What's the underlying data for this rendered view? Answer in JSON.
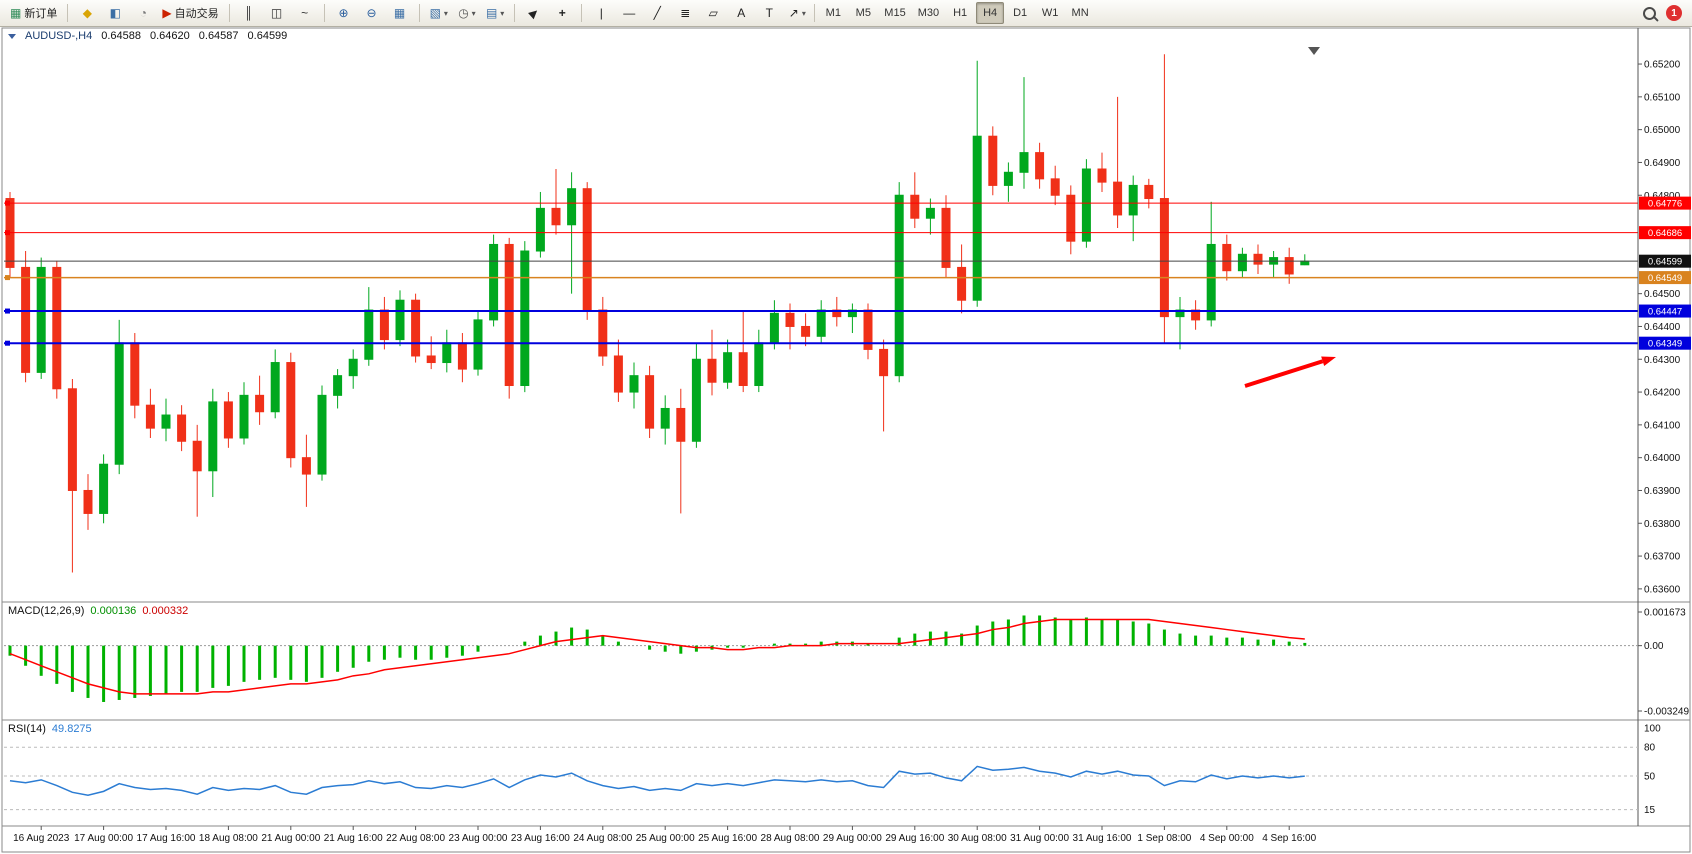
{
  "toolbar": {
    "groups": [
      {
        "items": [
          {
            "name": "new-order-button",
            "glyph": "▦",
            "glyph_color": "#2e8b57",
            "label": "新订单"
          }
        ]
      },
      {
        "items": [
          {
            "name": "market-watch-icon",
            "glyph": "◆",
            "glyph_color": "#d9a404"
          },
          {
            "name": "data-window-icon",
            "glyph": "◧",
            "glyph_color": "#3a6ea5"
          },
          {
            "name": "history-center-icon",
            "glyph": "◔",
            "glyph_color": "#777777"
          },
          {
            "name": "autotrading-button",
            "glyph": "▶",
            "glyph_color": "#cc2200",
            "label": "自动交易"
          }
        ]
      },
      {
        "items": [
          {
            "name": "ohlc-bars-button",
            "glyph": "║",
            "glyph_color": "#333333"
          },
          {
            "name": "candlestick-chart-button",
            "glyph": "◫",
            "glyph_color": "#333333"
          },
          {
            "name": "line-chart-button",
            "glyph": "~",
            "glyph_color": "#333333"
          }
        ]
      },
      {
        "items": [
          {
            "name": "zoom-in-button",
            "glyph": "⊕",
            "glyph_color": "#2b5f9e"
          },
          {
            "name": "zoom-out-button",
            "glyph": "⊖",
            "glyph_color": "#2b5f9e"
          },
          {
            "name": "tile-windows-button",
            "glyph": "▦",
            "glyph_color": "#3a6ea5"
          }
        ]
      },
      {
        "items": [
          {
            "name": "new-chart-button",
            "glyph": "▧",
            "glyph_color": "#3a6ea5",
            "caret": true
          },
          {
            "name": "templates-button",
            "glyph": "◷",
            "glyph_color": "#555555",
            "caret": true
          },
          {
            "name": "indicators-button",
            "glyph": "▤",
            "glyph_color": "#3a6ea5",
            "caret": true
          }
        ]
      },
      {
        "items": [
          {
            "name": "cursor-button",
            "glyph": "▶",
            "glyph_color": "#222222"
          },
          {
            "name": "crosshair-button",
            "glyph": "+",
            "glyph_color": "#222222"
          }
        ]
      },
      {
        "items": [
          {
            "name": "vertical-line-button",
            "glyph": "|",
            "glyph_color": "#222222"
          },
          {
            "name": "horizontal-line-button",
            "glyph": "—",
            "glyph_color": "#222222"
          },
          {
            "name": "trendline-button",
            "glyph": "╱",
            "glyph_color": "#222222"
          },
          {
            "name": "fibonacci-button",
            "glyph": "≣",
            "glyph_color": "#222222"
          },
          {
            "name": "shapes-button",
            "glyph": "▱",
            "glyph_color": "#222222"
          },
          {
            "name": "text-button",
            "glyph": "A",
            "glyph_color": "#222222"
          },
          {
            "name": "label-button",
            "glyph": "T",
            "glyph_color": "#222222"
          },
          {
            "name": "arrows-button",
            "glyph": "↗",
            "glyph_color": "#222222",
            "caret": true
          }
        ]
      }
    ],
    "timeframes": {
      "options": [
        "M1",
        "M5",
        "M15",
        "M30",
        "H1",
        "H4",
        "D1",
        "W1",
        "MN"
      ],
      "active": "H4"
    },
    "notifications": {
      "count": "1"
    }
  },
  "chart_header": {
    "symbol": "AUDUSD-,H4",
    "open": "0.64588",
    "high": "0.64620",
    "low": "0.64587",
    "close": "0.64599"
  },
  "chart_data": [
    {
      "type": "candlestick",
      "title": "AUDUSD- H4 candlestick chart",
      "ylim": [
        0.6356,
        0.65255
      ],
      "colors": {
        "up": "#00a81e",
        "down": "#f03018",
        "current_price_line": "#444444"
      },
      "y_ticks": [
        "0.65200",
        "0.65100",
        "0.65000",
        "0.64900",
        "0.64800",
        "0.64500",
        "0.64400",
        "0.64300",
        "0.64200",
        "0.64100",
        "0.64000",
        "0.63900",
        "0.63800",
        "0.63700",
        "0.63600"
      ],
      "x_labels": [
        "16 Aug 2023",
        "17 Aug 00:00",
        "17 Aug 16:00",
        "18 Aug 08:00",
        "21 Aug 00:00",
        "21 Aug 16:00",
        "22 Aug 08:00",
        "23 Aug 00:00",
        "23 Aug 16:00",
        "24 Aug 08:00",
        "25 Aug 00:00",
        "25 Aug 16:00",
        "28 Aug 08:00",
        "29 Aug 00:00",
        "29 Aug 16:00",
        "30 Aug 08:00",
        "31 Aug 00:00",
        "31 Aug 16:00",
        "1 Sep 08:00",
        "4 Sep 00:00",
        "4 Sep 16:00"
      ],
      "x_label_bar_indices": [
        2,
        6,
        10,
        14,
        18,
        22,
        26,
        30,
        34,
        38,
        42,
        46,
        50,
        54,
        58,
        62,
        66,
        70,
        74,
        78,
        82
      ],
      "hlines": [
        {
          "price": 0.64776,
          "label": "0.64776",
          "color": "#ff0000",
          "width": 1,
          "handle": true
        },
        {
          "price": 0.64686,
          "label": "0.64686",
          "color": "#ff0000",
          "width": 1,
          "handle": true
        },
        {
          "price": 0.64599,
          "label": "0.64599",
          "color": "#111111",
          "width": 1,
          "handle": false,
          "current": true
        },
        {
          "price": 0.64549,
          "label": "0.64549",
          "color": "#d9831f",
          "width": 1.5,
          "handle": true
        },
        {
          "price": 0.64447,
          "label": "0.64447",
          "color": "#0000dd",
          "width": 2,
          "handle": true
        },
        {
          "price": 0.64349,
          "label": "0.64349",
          "color": "#0000dd",
          "width": 2,
          "handle": true
        }
      ],
      "annotations": [
        {
          "type": "arrow",
          "color": "#ff0000",
          "from": [
            1245,
            386
          ],
          "to": [
            1336,
            357
          ]
        }
      ],
      "ohlc": [
        [
          0.6479,
          0.6481,
          0.6455,
          0.6458
        ],
        [
          0.6458,
          0.6463,
          0.6423,
          0.6426
        ],
        [
          0.6426,
          0.6461,
          0.6424,
          0.6458
        ],
        [
          0.6458,
          0.646,
          0.6418,
          0.6421
        ],
        [
          0.6421,
          0.6424,
          0.6365,
          0.639
        ],
        [
          0.639,
          0.6395,
          0.6378,
          0.6383
        ],
        [
          0.6383,
          0.6401,
          0.638,
          0.6398
        ],
        [
          0.6398,
          0.6442,
          0.6395,
          0.6435
        ],
        [
          0.6435,
          0.6438,
          0.6412,
          0.6416
        ],
        [
          0.6416,
          0.6421,
          0.6406,
          0.6409
        ],
        [
          0.6409,
          0.6418,
          0.6405,
          0.6413
        ],
        [
          0.6413,
          0.6416,
          0.6402,
          0.6405
        ],
        [
          0.6405,
          0.641,
          0.6382,
          0.6396
        ],
        [
          0.6396,
          0.6421,
          0.6388,
          0.6417
        ],
        [
          0.6417,
          0.642,
          0.6403,
          0.6406
        ],
        [
          0.6406,
          0.6423,
          0.6404,
          0.6419
        ],
        [
          0.6419,
          0.6425,
          0.641,
          0.6414
        ],
        [
          0.6414,
          0.6433,
          0.6412,
          0.6429
        ],
        [
          0.6429,
          0.6432,
          0.6397,
          0.64
        ],
        [
          0.64,
          0.6407,
          0.6385,
          0.6395
        ],
        [
          0.6395,
          0.6422,
          0.6393,
          0.6419
        ],
        [
          0.6419,
          0.6427,
          0.6415,
          0.6425
        ],
        [
          0.6425,
          0.6433,
          0.6421,
          0.643
        ],
        [
          0.643,
          0.6452,
          0.6428,
          0.6445
        ],
        [
          0.6445,
          0.6449,
          0.6433,
          0.6436
        ],
        [
          0.6436,
          0.6451,
          0.6434,
          0.6448
        ],
        [
          0.6448,
          0.645,
          0.6429,
          0.6431
        ],
        [
          0.6431,
          0.6437,
          0.6427,
          0.6429
        ],
        [
          0.6429,
          0.6439,
          0.6426,
          0.6435
        ],
        [
          0.6435,
          0.6438,
          0.6423,
          0.6427
        ],
        [
          0.6427,
          0.6445,
          0.6425,
          0.6442
        ],
        [
          0.6442,
          0.6468,
          0.644,
          0.6465
        ],
        [
          0.6465,
          0.6467,
          0.6418,
          0.6422
        ],
        [
          0.6422,
          0.6466,
          0.642,
          0.6463
        ],
        [
          0.6463,
          0.6481,
          0.6461,
          0.6476
        ],
        [
          0.6476,
          0.6488,
          0.6468,
          0.6471
        ],
        [
          0.6471,
          0.6487,
          0.645,
          0.6482
        ],
        [
          0.6482,
          0.6484,
          0.6442,
          0.6445
        ],
        [
          0.6445,
          0.6449,
          0.6428,
          0.6431
        ],
        [
          0.6431,
          0.6436,
          0.6417,
          0.642
        ],
        [
          0.642,
          0.6429,
          0.6415,
          0.6425
        ],
        [
          0.6425,
          0.6428,
          0.6406,
          0.6409
        ],
        [
          0.6409,
          0.6419,
          0.6404,
          0.6415
        ],
        [
          0.6415,
          0.6421,
          0.6383,
          0.6405
        ],
        [
          0.6405,
          0.6435,
          0.6403,
          0.643
        ],
        [
          0.643,
          0.6439,
          0.6419,
          0.6423
        ],
        [
          0.6423,
          0.6436,
          0.6421,
          0.6432
        ],
        [
          0.6432,
          0.6445,
          0.642,
          0.6422
        ],
        [
          0.6422,
          0.6439,
          0.642,
          0.6435
        ],
        [
          0.6435,
          0.6448,
          0.6433,
          0.6444
        ],
        [
          0.6444,
          0.6447,
          0.6433,
          0.644
        ],
        [
          0.644,
          0.6444,
          0.6434,
          0.6437
        ],
        [
          0.6437,
          0.6448,
          0.6435,
          0.6445
        ],
        [
          0.6445,
          0.6449,
          0.644,
          0.6443
        ],
        [
          0.6443,
          0.6447,
          0.6438,
          0.6445
        ],
        [
          0.6445,
          0.6447,
          0.643,
          0.6433
        ],
        [
          0.6433,
          0.6436,
          0.6408,
          0.6425
        ],
        [
          0.6425,
          0.6484,
          0.6423,
          0.648
        ],
        [
          0.648,
          0.6487,
          0.647,
          0.6473
        ],
        [
          0.6473,
          0.6479,
          0.6468,
          0.6476
        ],
        [
          0.6476,
          0.648,
          0.6455,
          0.6458
        ],
        [
          0.6458,
          0.6465,
          0.6444,
          0.6448
        ],
        [
          0.6448,
          0.6521,
          0.6446,
          0.6498
        ],
        [
          0.6498,
          0.6501,
          0.648,
          0.6483
        ],
        [
          0.6483,
          0.649,
          0.6478,
          0.6487
        ],
        [
          0.6487,
          0.6516,
          0.6482,
          0.6493
        ],
        [
          0.6493,
          0.6496,
          0.6482,
          0.6485
        ],
        [
          0.6485,
          0.6489,
          0.6477,
          0.648
        ],
        [
          0.648,
          0.6483,
          0.6462,
          0.6466
        ],
        [
          0.6466,
          0.6491,
          0.6464,
          0.6488
        ],
        [
          0.6488,
          0.6493,
          0.6481,
          0.6484
        ],
        [
          0.6484,
          0.651,
          0.647,
          0.6474
        ],
        [
          0.6474,
          0.6486,
          0.6466,
          0.6483
        ],
        [
          0.6483,
          0.6485,
          0.6476,
          0.6479
        ],
        [
          0.6479,
          0.6523,
          0.6435,
          0.6443
        ],
        [
          0.6443,
          0.6449,
          0.6433,
          0.6445
        ],
        [
          0.6445,
          0.6448,
          0.6439,
          0.6442
        ],
        [
          0.6442,
          0.6478,
          0.644,
          0.6465
        ],
        [
          0.6465,
          0.6468,
          0.6454,
          0.6457
        ],
        [
          0.6457,
          0.6464,
          0.6455,
          0.6462
        ],
        [
          0.6462,
          0.6465,
          0.6456,
          0.6459
        ],
        [
          0.6459,
          0.6463,
          0.6455,
          0.6461
        ],
        [
          0.6461,
          0.6464,
          0.6453,
          0.6456
        ],
        [
          0.64588,
          0.6462,
          0.64587,
          0.64599
        ]
      ]
    },
    {
      "type": "bar",
      "name": "MACD(12,26,9)",
      "value_main": "0.000136",
      "value_signal": "0.000332",
      "ylim": [
        -0.003249,
        0.001673
      ],
      "y_ticks": [
        "0.001673",
        "0.00",
        "-0.003249"
      ],
      "colors": {
        "histogram": "#00b200",
        "signal": "#ff0000",
        "zero_line": "#999999"
      },
      "histogram": [
        -0.0005,
        -0.001,
        -0.0015,
        -0.0019,
        -0.0023,
        -0.0026,
        -0.0028,
        -0.0027,
        -0.0026,
        -0.0025,
        -0.0024,
        -0.0023,
        -0.0023,
        -0.0021,
        -0.002,
        -0.0018,
        -0.0017,
        -0.0016,
        -0.0017,
        -0.0018,
        -0.0016,
        -0.0013,
        -0.0011,
        -0.0008,
        -0.0007,
        -0.0006,
        -0.0007,
        -0.0007,
        -0.0006,
        -0.0005,
        -0.0003,
        0.0,
        0.0,
        0.0002,
        0.0005,
        0.0007,
        0.0009,
        0.0008,
        0.0005,
        0.0002,
        0.0,
        -0.0002,
        -0.0003,
        -0.0004,
        -0.0003,
        -0.0002,
        -0.0001,
        -0.0001,
        0.0,
        0.0001,
        0.0001,
        0.0001,
        0.0002,
        0.0002,
        0.0002,
        0.0001,
        0.0,
        0.0004,
        0.0006,
        0.0007,
        0.0007,
        0.0006,
        0.001,
        0.0012,
        0.0013,
        0.0015,
        0.0015,
        0.0014,
        0.0013,
        0.0014,
        0.0013,
        0.0013,
        0.0012,
        0.0011,
        0.0008,
        0.0006,
        0.0005,
        0.0005,
        0.0004,
        0.0004,
        0.0003,
        0.0003,
        0.0002,
        0.000136
      ],
      "signal": [
        -0.0004,
        -0.0007,
        -0.001,
        -0.0013,
        -0.0016,
        -0.0019,
        -0.0021,
        -0.0023,
        -0.0024,
        -0.0024,
        -0.0024,
        -0.0024,
        -0.0024,
        -0.0023,
        -0.0023,
        -0.0022,
        -0.0021,
        -0.002,
        -0.0019,
        -0.0019,
        -0.0018,
        -0.0017,
        -0.0015,
        -0.0014,
        -0.0012,
        -0.0011,
        -0.001,
        -0.0009,
        -0.0008,
        -0.0007,
        -0.0006,
        -0.0005,
        -0.0004,
        -0.0002,
        0.0,
        0.0002,
        0.0003,
        0.0004,
        0.0005,
        0.0004,
        0.0003,
        0.0002,
        0.0001,
        0.0,
        -0.0001,
        -0.0001,
        -0.0002,
        -0.0002,
        -0.0001,
        -0.0001,
        0.0,
        0.0,
        0.0,
        0.0001,
        0.0001,
        0.0001,
        0.0001,
        0.0001,
        0.0002,
        0.0003,
        0.0004,
        0.0005,
        0.0006,
        0.0008,
        0.0009,
        0.0011,
        0.0012,
        0.0013,
        0.0013,
        0.0013,
        0.0013,
        0.0013,
        0.0013,
        0.0013,
        0.0012,
        0.0011,
        0.001,
        0.0009,
        0.0008,
        0.0007,
        0.0006,
        0.0005,
        0.0004,
        0.000332
      ]
    },
    {
      "type": "line",
      "name": "RSI(14)",
      "value": "49.8275",
      "ylim": [
        0,
        100
      ],
      "levels": [
        80,
        50,
        15
      ],
      "y_ticks": [
        "100",
        "80",
        "50",
        "15"
      ],
      "colors": {
        "line": "#2b7cd3",
        "levels": "#bbbbbb"
      },
      "values": [
        45,
        43,
        46,
        40,
        33,
        30,
        34,
        42,
        38,
        36,
        37,
        35,
        31,
        38,
        35,
        37,
        36,
        40,
        33,
        31,
        38,
        40,
        41,
        45,
        42,
        44,
        38,
        37,
        40,
        38,
        42,
        47,
        38,
        46,
        51,
        49,
        53,
        45,
        40,
        37,
        39,
        35,
        37,
        35,
        42,
        40,
        42,
        40,
        43,
        46,
        45,
        44,
        46,
        44,
        45,
        40,
        38,
        55,
        52,
        53,
        48,
        45,
        60,
        56,
        57,
        59,
        55,
        53,
        49,
        55,
        52,
        55,
        51,
        50,
        40,
        45,
        44,
        51,
        47,
        50,
        48,
        50,
        48,
        49.8275
      ]
    }
  ]
}
